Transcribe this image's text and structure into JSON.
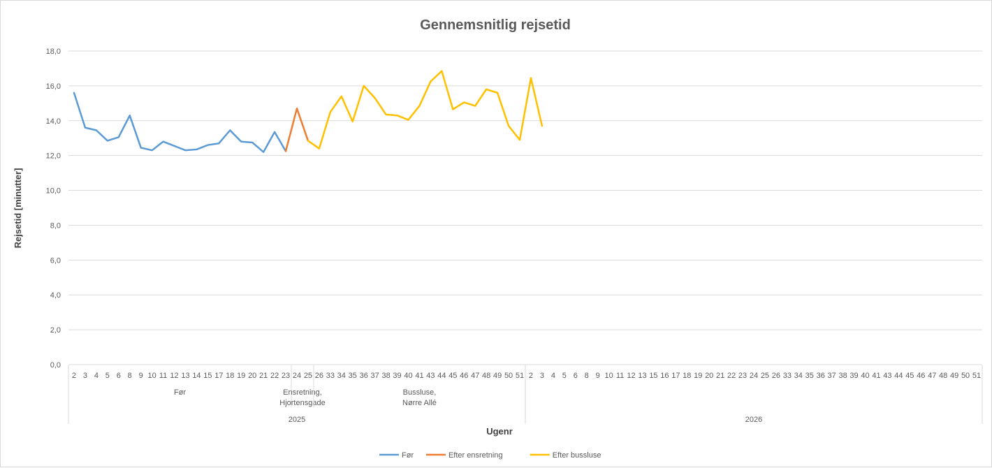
{
  "chart_data": {
    "type": "line",
    "title": "Gennemsnitlig rejsetid",
    "ylabel": "Rejsetid [minutter]",
    "xlabel": "Ugenr",
    "ylim": [
      0,
      18
    ],
    "y_ticks": [
      "0,0",
      "2,0",
      "4,0",
      "6,0",
      "8,0",
      "10,0",
      "12,0",
      "14,0",
      "16,0",
      "18,0"
    ],
    "grid": true,
    "legend_position": "bottom",
    "weeks": [
      "2",
      "3",
      "4",
      "5",
      "6",
      "8",
      "9",
      "10",
      "11",
      "12",
      "13",
      "14",
      "15",
      "17",
      "18",
      "19",
      "20",
      "21",
      "22",
      "23",
      "24",
      "25",
      "26",
      "33",
      "34",
      "35",
      "36",
      "37",
      "38",
      "39",
      "40",
      "41",
      "43",
      "44",
      "45",
      "46",
      "47",
      "48",
      "49",
      "50",
      "51",
      "2",
      "3",
      "4",
      "5",
      "6",
      "8",
      "9",
      "10",
      "11",
      "12",
      "13",
      "15",
      "16",
      "17",
      "18",
      "19",
      "20",
      "21",
      "22",
      "23",
      "24",
      "25",
      "26",
      "33",
      "34",
      "35",
      "36",
      "37",
      "38",
      "39",
      "40",
      "41",
      "43",
      "44",
      "45",
      "46",
      "47",
      "48",
      "49",
      "50",
      "51"
    ],
    "year_groups": [
      {
        "label": "2025",
        "count": 41
      },
      {
        "label": "2026",
        "count": 41
      }
    ],
    "phase_groups": [
      {
        "label": "Før",
        "count": 20
      },
      {
        "label": "Ensretning, Hjortensgade",
        "count": 2
      },
      {
        "label": "Bussluse, Nørre Allé",
        "count": 19
      }
    ],
    "series": [
      {
        "name": "Før",
        "color": "#5b9bd5",
        "start": 0,
        "values": [
          15.6,
          13.6,
          13.45,
          12.85,
          13.05,
          14.3,
          12.45,
          12.3,
          12.8,
          12.55,
          12.3,
          12.35,
          12.6,
          12.7,
          13.45,
          12.8,
          12.75,
          12.2,
          13.35,
          12.25
        ]
      },
      {
        "name": "Efter ensretning",
        "color": "#ed7d31",
        "start": 19,
        "values": [
          12.25,
          14.7,
          12.85
        ]
      },
      {
        "name": "Efter bussluse",
        "color": "#ffc000",
        "start": 21,
        "values": [
          12.85,
          12.4,
          14.5,
          15.4,
          13.95,
          16.0,
          15.3,
          14.35,
          14.3,
          14.05,
          14.85,
          16.25,
          16.85,
          14.65,
          15.05,
          14.85,
          15.8,
          15.6,
          13.7,
          12.9,
          16.45,
          13.7
        ]
      }
    ]
  }
}
